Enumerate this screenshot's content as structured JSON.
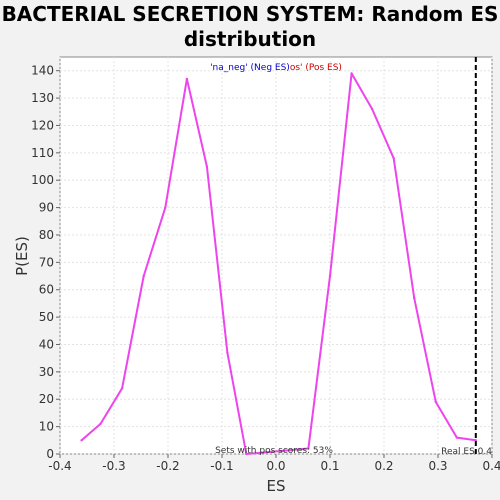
{
  "chart_data": {
    "type": "line",
    "title_line1": "BACTERIAL SECRETION SYSTEM: Random ES",
    "title_line2": "distribution",
    "xlabel": "ES",
    "ylabel": "P(ES)",
    "xlim": [
      -0.4,
      0.4
    ],
    "ylim": [
      0,
      145
    ],
    "x_ticks": [
      -0.4,
      -0.3,
      -0.2,
      -0.1,
      0.0,
      0.1,
      0.2,
      0.3,
      0.4
    ],
    "x_tick_labels": [
      "-0.4",
      "-0.3",
      "-0.2",
      "-0.1",
      "0.0",
      "0.1",
      "0.2",
      "0.3",
      "0.4"
    ],
    "y_ticks": [
      0,
      10,
      20,
      30,
      40,
      50,
      60,
      70,
      80,
      90,
      100,
      110,
      120,
      130,
      140
    ],
    "grid": true,
    "legend": {
      "neg_label": "'na_neg' (Neg ES)",
      "pos_label": "os' (Pos ES)",
      "neg_color": "#0000cc",
      "pos_color": "#cc0000",
      "placement": "top-center"
    },
    "series": [
      {
        "color": "#ee44ee",
        "x": [
          -0.36,
          -0.325,
          -0.285,
          -0.245,
          -0.205,
          -0.165,
          -0.128,
          -0.09,
          -0.055,
          0.06,
          0.1,
          0.14,
          0.178,
          0.218,
          0.256,
          0.296,
          0.335,
          0.37
        ],
        "y": [
          5,
          11,
          24,
          65,
          90,
          137,
          105,
          37,
          0,
          2,
          65,
          139,
          126,
          108,
          57,
          19,
          6,
          5
        ]
      }
    ],
    "real_es": 0.37,
    "real_es_label": "Real ES 0.4",
    "annotation": "Sets with pos scores: 53%"
  }
}
